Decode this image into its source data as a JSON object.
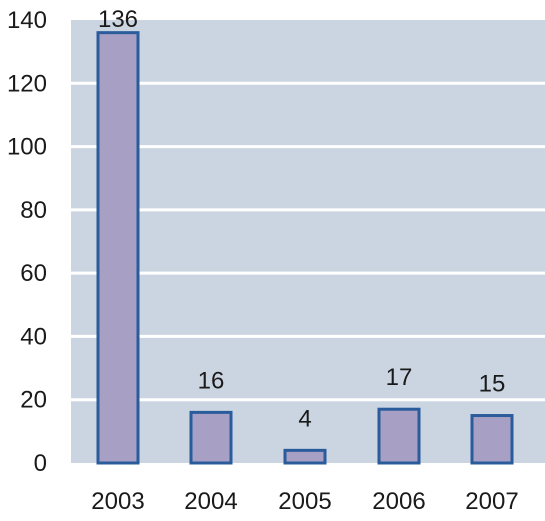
{
  "chart_data": {
    "type": "bar",
    "title": "",
    "xlabel": "",
    "ylabel": "",
    "categories": [
      "2003",
      "2004",
      "2005",
      "2006",
      "2007"
    ],
    "values": [
      136,
      16,
      4,
      17,
      15
    ],
    "data_labels": [
      "136",
      "16",
      "4",
      "17",
      "15"
    ],
    "ylim": [
      0,
      140
    ],
    "yticks": [
      "0",
      "20",
      "40",
      "60",
      "80",
      "100",
      "120",
      "140"
    ],
    "grid": true,
    "legend": "none",
    "colors": {
      "plot_background": "#cbd5e2",
      "gridline": "#ffffff",
      "bar_fill": "#a8a0c4",
      "bar_stroke": "#2a5c9c"
    }
  }
}
